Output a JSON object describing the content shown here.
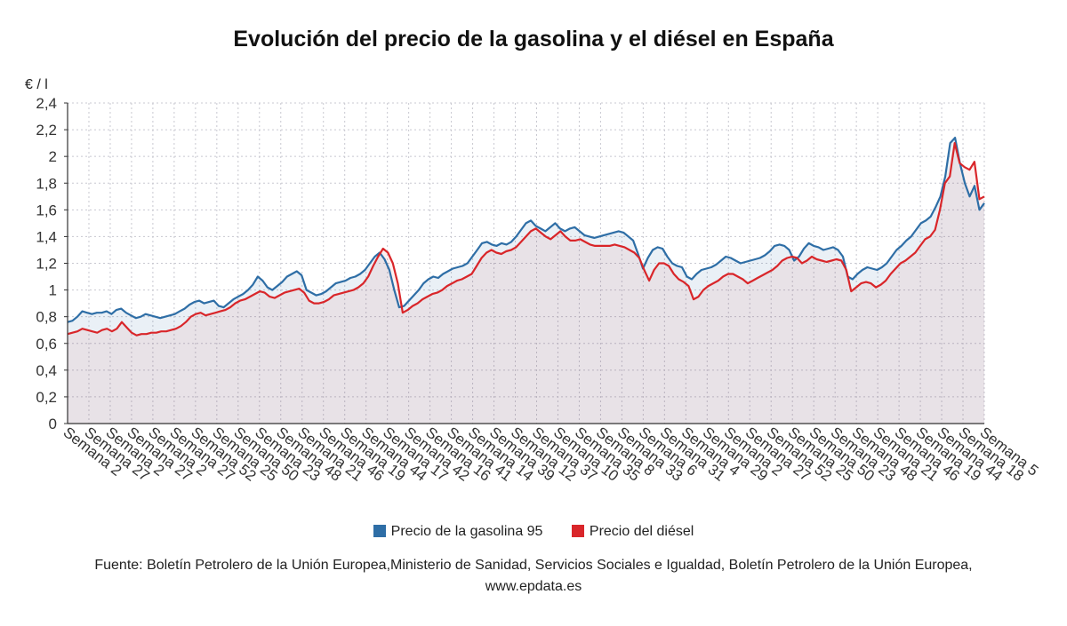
{
  "chart_data": {
    "type": "area",
    "title": "Evolución del precio de la gasolina y el diésel en España",
    "ylabel": "€ / l",
    "xlabel": "",
    "ylim": [
      0,
      2.4
    ],
    "yticks": [
      "0",
      "0,2",
      "0,4",
      "0,6",
      "0,8",
      "1",
      "1,2",
      "1,4",
      "1,6",
      "1,8",
      "2",
      "2,2",
      "2,4"
    ],
    "x_tick_labels": [
      "Semana 2",
      "Semana 27",
      "Semana 2",
      "Semana 27",
      "Semana 2",
      "Semana 27",
      "Semana 52",
      "Semana 25",
      "Semana 50",
      "Semana 23",
      "Semana 48",
      "Semana 21",
      "Semana 46",
      "Semana 19",
      "Semana 44",
      "Semana 17",
      "Semana 42",
      "Semana 16",
      "Semana 41",
      "Semana 14",
      "Semana 39",
      "Semana 12",
      "Semana 37",
      "Semana 10",
      "Semana 35",
      "Semana 8",
      "Semana 33",
      "Semana 6",
      "Semana 31",
      "Semana 4",
      "Semana 29",
      "Semana 2",
      "Semana 27",
      "Semana 52",
      "Semana 25",
      "Semana 50",
      "Semana 23",
      "Semana 48",
      "Semana 21",
      "Semana 46",
      "Semana 19",
      "Semana 44",
      "Semana 18",
      "Semana 5"
    ],
    "grid": true,
    "legend_position": "bottom",
    "series": [
      {
        "name": "Precio de la gasolina 95",
        "color": "#2e6ea6",
        "values": [
          0.76,
          0.77,
          0.8,
          0.84,
          0.83,
          0.82,
          0.83,
          0.83,
          0.84,
          0.82,
          0.85,
          0.86,
          0.83,
          0.81,
          0.79,
          0.8,
          0.82,
          0.81,
          0.8,
          0.79,
          0.8,
          0.81,
          0.82,
          0.84,
          0.86,
          0.89,
          0.91,
          0.92,
          0.9,
          0.91,
          0.92,
          0.88,
          0.87,
          0.9,
          0.93,
          0.95,
          0.97,
          1.0,
          1.04,
          1.1,
          1.07,
          1.02,
          1.0,
          1.03,
          1.06,
          1.1,
          1.12,
          1.14,
          1.11,
          1.0,
          0.98,
          0.96,
          0.97,
          0.99,
          1.02,
          1.05,
          1.06,
          1.07,
          1.09,
          1.1,
          1.12,
          1.15,
          1.2,
          1.25,
          1.28,
          1.23,
          1.15,
          1.0,
          0.87,
          0.88,
          0.92,
          0.96,
          1.0,
          1.05,
          1.08,
          1.1,
          1.09,
          1.12,
          1.14,
          1.16,
          1.17,
          1.18,
          1.2,
          1.25,
          1.3,
          1.35,
          1.36,
          1.34,
          1.33,
          1.35,
          1.34,
          1.36,
          1.4,
          1.45,
          1.5,
          1.52,
          1.48,
          1.46,
          1.44,
          1.47,
          1.5,
          1.46,
          1.44,
          1.46,
          1.47,
          1.44,
          1.41,
          1.4,
          1.39,
          1.4,
          1.41,
          1.42,
          1.43,
          1.44,
          1.43,
          1.4,
          1.37,
          1.27,
          1.16,
          1.24,
          1.3,
          1.32,
          1.31,
          1.25,
          1.2,
          1.18,
          1.17,
          1.1,
          1.08,
          1.12,
          1.15,
          1.16,
          1.17,
          1.19,
          1.22,
          1.25,
          1.24,
          1.22,
          1.2,
          1.21,
          1.22,
          1.23,
          1.24,
          1.26,
          1.29,
          1.33,
          1.34,
          1.33,
          1.3,
          1.22,
          1.25,
          1.31,
          1.35,
          1.33,
          1.32,
          1.3,
          1.31,
          1.32,
          1.3,
          1.25,
          1.1,
          1.08,
          1.12,
          1.15,
          1.17,
          1.16,
          1.15,
          1.17,
          1.2,
          1.25,
          1.3,
          1.33,
          1.37,
          1.4,
          1.45,
          1.5,
          1.52,
          1.55,
          1.62,
          1.7,
          1.85,
          2.1,
          2.14,
          1.95,
          1.8,
          1.7,
          1.78,
          1.6,
          1.65
        ]
      },
      {
        "name": "Precio del diésel",
        "color": "#d9262a",
        "values": [
          0.67,
          0.68,
          0.69,
          0.71,
          0.7,
          0.69,
          0.68,
          0.7,
          0.71,
          0.69,
          0.71,
          0.76,
          0.72,
          0.68,
          0.66,
          0.67,
          0.67,
          0.68,
          0.68,
          0.69,
          0.69,
          0.7,
          0.71,
          0.73,
          0.76,
          0.8,
          0.82,
          0.83,
          0.81,
          0.82,
          0.83,
          0.84,
          0.85,
          0.87,
          0.9,
          0.92,
          0.93,
          0.95,
          0.97,
          0.99,
          0.98,
          0.95,
          0.94,
          0.96,
          0.98,
          0.99,
          1.0,
          1.01,
          0.98,
          0.92,
          0.9,
          0.9,
          0.91,
          0.93,
          0.96,
          0.97,
          0.98,
          0.99,
          1.0,
          1.02,
          1.05,
          1.1,
          1.18,
          1.25,
          1.31,
          1.28,
          1.2,
          1.05,
          0.83,
          0.85,
          0.88,
          0.9,
          0.93,
          0.95,
          0.97,
          0.98,
          1.0,
          1.03,
          1.05,
          1.07,
          1.08,
          1.1,
          1.12,
          1.18,
          1.24,
          1.28,
          1.3,
          1.28,
          1.27,
          1.29,
          1.3,
          1.32,
          1.36,
          1.4,
          1.44,
          1.46,
          1.43,
          1.4,
          1.38,
          1.41,
          1.44,
          1.4,
          1.37,
          1.37,
          1.38,
          1.36,
          1.34,
          1.33,
          1.33,
          1.33,
          1.33,
          1.34,
          1.33,
          1.32,
          1.3,
          1.28,
          1.24,
          1.15,
          1.07,
          1.15,
          1.2,
          1.2,
          1.18,
          1.12,
          1.08,
          1.06,
          1.03,
          0.93,
          0.95,
          1.0,
          1.03,
          1.05,
          1.07,
          1.1,
          1.12,
          1.12,
          1.1,
          1.08,
          1.05,
          1.07,
          1.09,
          1.11,
          1.13,
          1.15,
          1.18,
          1.22,
          1.24,
          1.25,
          1.24,
          1.2,
          1.22,
          1.25,
          1.23,
          1.22,
          1.21,
          1.22,
          1.23,
          1.22,
          1.15,
          0.99,
          1.02,
          1.05,
          1.06,
          1.05,
          1.02,
          1.04,
          1.07,
          1.12,
          1.16,
          1.2,
          1.22,
          1.25,
          1.28,
          1.33,
          1.38,
          1.4,
          1.45,
          1.6,
          1.8,
          1.85,
          2.1,
          1.95,
          1.92,
          1.9,
          1.96,
          1.68,
          1.7
        ]
      }
    ]
  },
  "source_text": "Fuente: Boletín Petrolero de la Unión Europea,Ministerio de Sanidad, Servicios Sociales e Igualdad, Boletín Petrolero de la Unión Europea,",
  "source_site": "www.epdata.es"
}
